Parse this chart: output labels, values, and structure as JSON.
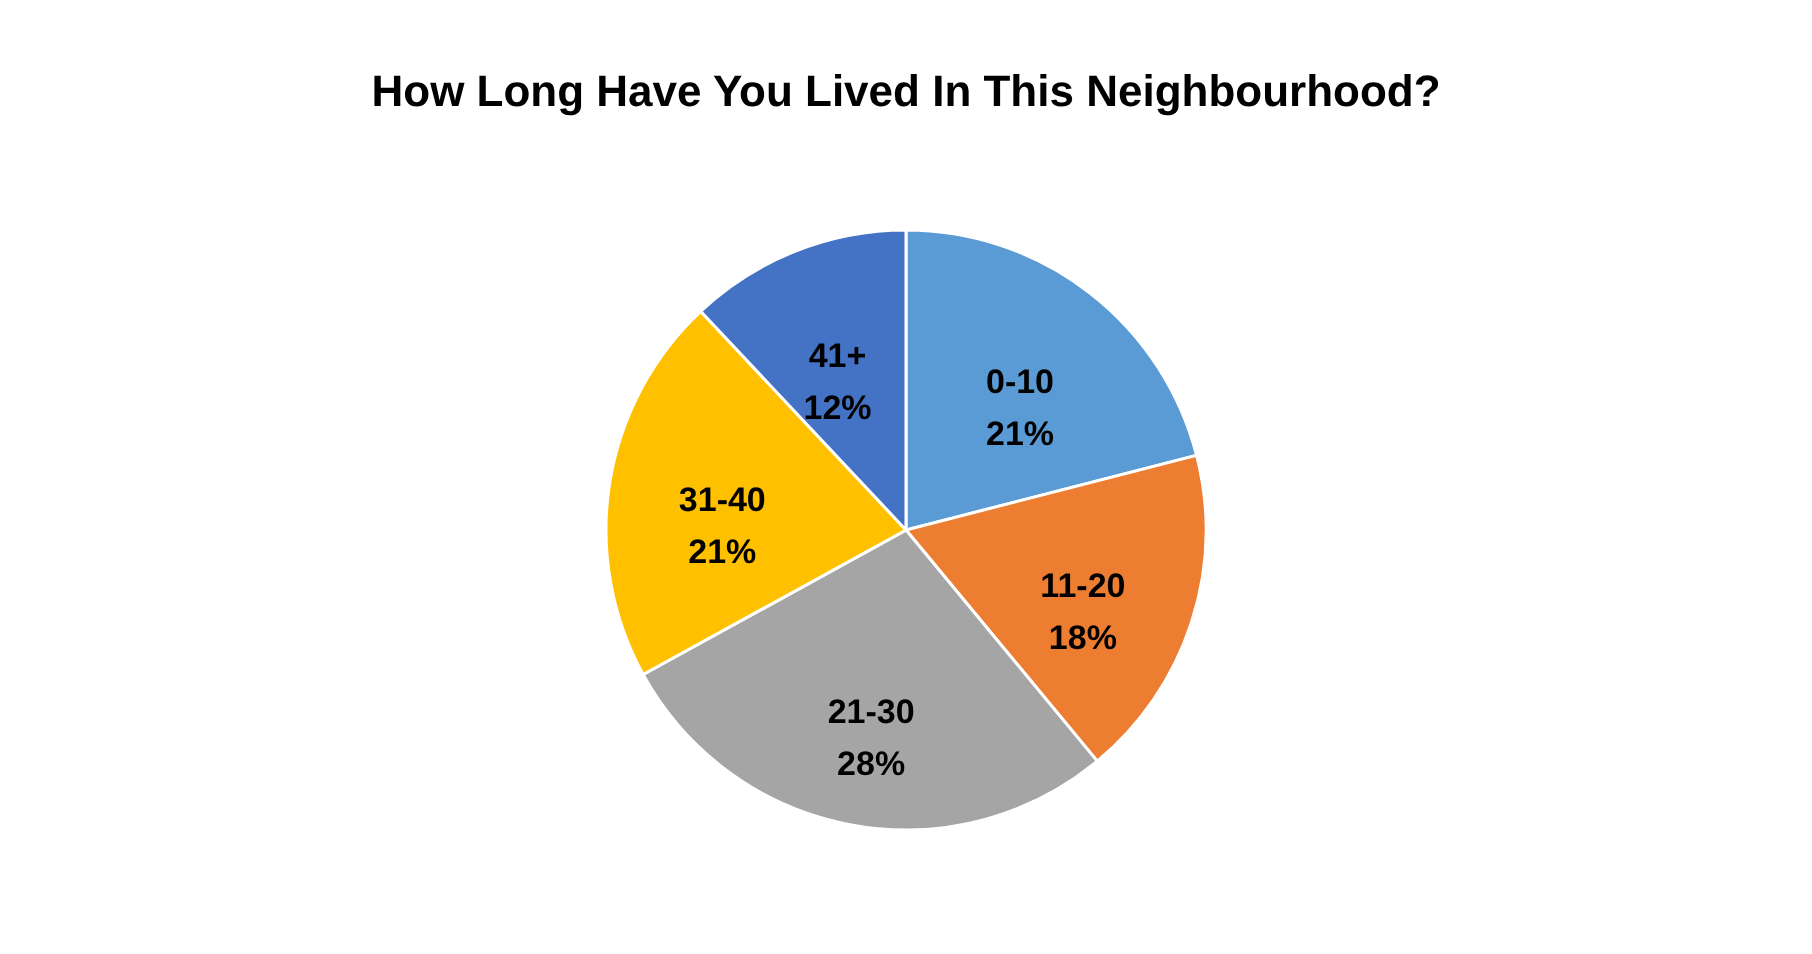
{
  "chart_data": {
    "type": "pie",
    "title": "How Long Have You Lived In This Neighbourhood?",
    "categories": [
      "0-10",
      "11-20",
      "21-30",
      "31-40",
      "41+"
    ],
    "values": [
      21,
      18,
      28,
      21,
      12
    ],
    "value_labels": [
      "21%",
      "18%",
      "28%",
      "21%",
      "12%"
    ],
    "colors": [
      "#5b9bd5",
      "#ed7d31",
      "#a5a5a5",
      "#ffc000",
      "#4472c4"
    ],
    "legend": false
  }
}
